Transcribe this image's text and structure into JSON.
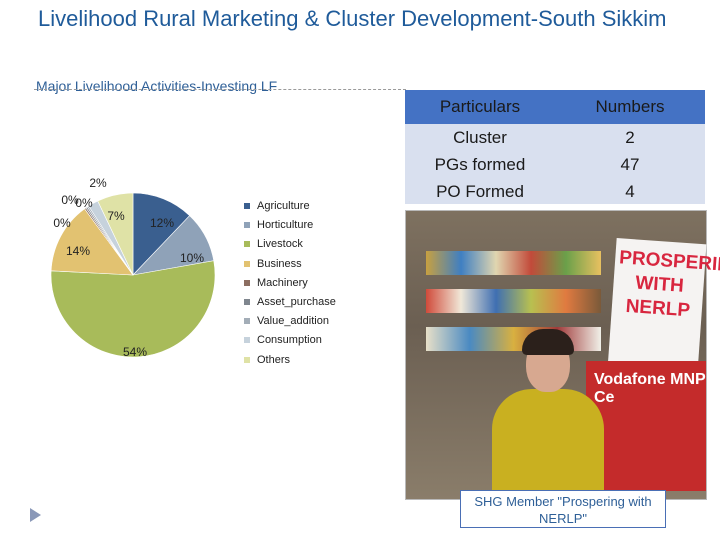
{
  "slide_title": "Livelihood Rural Marketing & Cluster Development-South Sikkim",
  "chart_data": {
    "type": "pie",
    "title": "Major Livelihood Activities-Investing LF",
    "categories": [
      "Agriculture",
      "Horticulture",
      "Livestock",
      "Business",
      "Machinery",
      "Asset_purchase",
      "Value_addition",
      "Consumption",
      "Others"
    ],
    "values": [
      12,
      10,
      54,
      14,
      0,
      0,
      0,
      2,
      7
    ],
    "data_labels": [
      "12%",
      "10%",
      "54%",
      "14%",
      "0%",
      "0%",
      "0%",
      "2%",
      "7%"
    ],
    "colors": [
      "#3a5f8f",
      "#8fa2b8",
      "#a8bb5a",
      "#e2c271",
      "#8c6e61",
      "#7f868e",
      "#a3adb7",
      "#c6d2dc",
      "#dfe2a6"
    ],
    "legend_position": "right"
  },
  "table": {
    "headers": [
      "Particulars",
      "Numbers"
    ],
    "particulars": [
      "Cluster",
      "PGs formed",
      "PO Formed"
    ],
    "numbers": [
      "2",
      "47",
      "4"
    ]
  },
  "photo": {
    "poster_text": "PROSPERING\nWITH\nNERLP",
    "banner_text": "Vodafone MNP Ce"
  },
  "caption": "SHG Member \"Prospering with NERLP\""
}
